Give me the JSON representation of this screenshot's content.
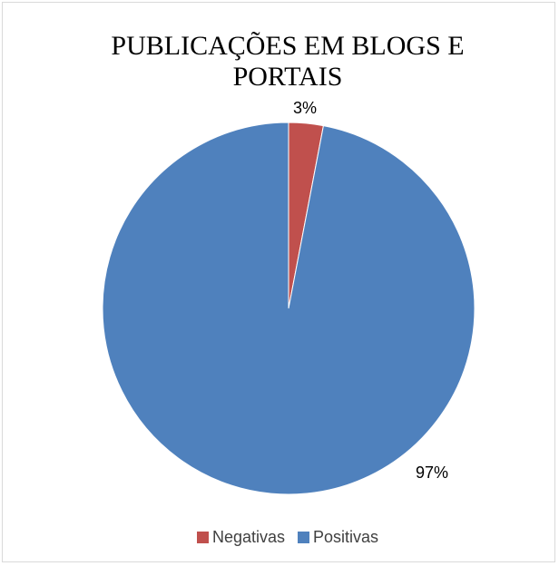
{
  "chart_data": {
    "type": "pie",
    "title_lines": [
      "PUBLICAÇÕES EM BLOGS E",
      "PORTAIS"
    ],
    "slices": [
      {
        "name": "Negativas",
        "value": 3,
        "label": "3%",
        "color": "#c0504d"
      },
      {
        "name": "Positivas",
        "value": 97,
        "label": "97%",
        "color": "#4f81bd"
      }
    ],
    "legend_placement": "bottom"
  }
}
